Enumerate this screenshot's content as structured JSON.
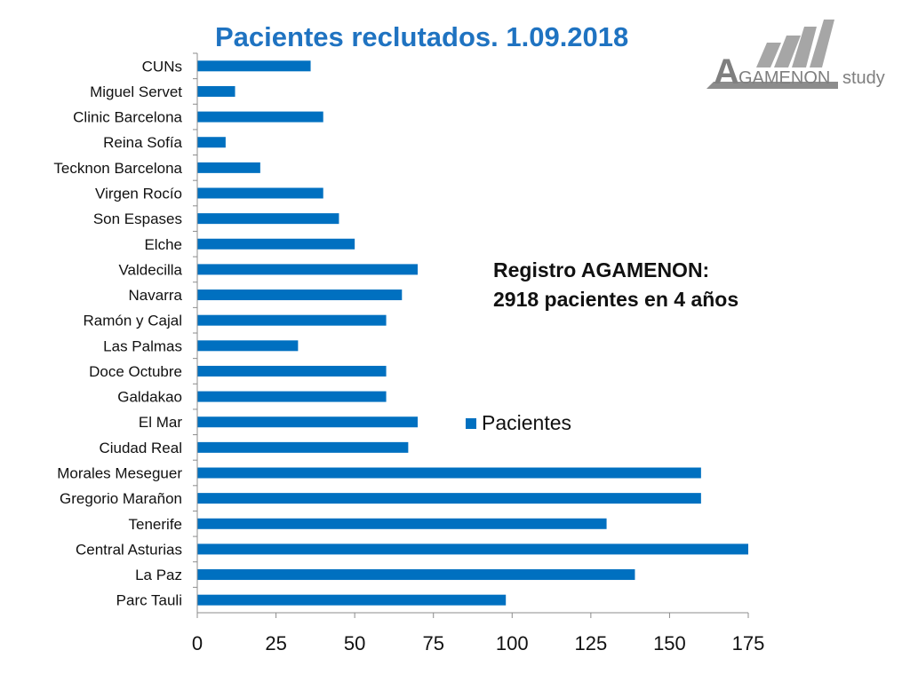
{
  "title": "Pacientes reclutados. 1.09.2018",
  "logo": {
    "text_small_caps": "GAMENON",
    "letter": "A",
    "suffix": "study"
  },
  "annotation": {
    "line1": "Registro AGAMENON:",
    "line2": "2918 pacientes en 4 años"
  },
  "chart_data": {
    "type": "bar",
    "orientation": "horizontal",
    "categories": [
      "CUNs",
      "Miguel Servet",
      "Clinic Barcelona",
      "Reina Sofía",
      "Tecknon Barcelona",
      "Virgen Rocío",
      "Son Espases",
      "Elche",
      "Valdecilla",
      "Navarra",
      "Ramón y Cajal",
      "Las Palmas",
      "Doce Octubre",
      "Galdakao",
      "El Mar",
      "Ciudad Real",
      "Morales Meseguer",
      "Gregorio Marañon",
      "Tenerife",
      "Central Asturias",
      "La Paz",
      "Parc Tauli"
    ],
    "series": [
      {
        "name": "Pacientes",
        "values": [
          36,
          12,
          40,
          9,
          20,
          40,
          45,
          50,
          70,
          65,
          60,
          32,
          60,
          60,
          70,
          67,
          160,
          160,
          130,
          175,
          139,
          98
        ]
      }
    ],
    "xlim": [
      0,
      175
    ],
    "xticks": [
      0,
      25,
      50,
      75,
      100,
      125,
      150,
      175
    ],
    "legend_position": "right-middle",
    "grid": false,
    "colors": {
      "bar": "#0070c0"
    }
  }
}
